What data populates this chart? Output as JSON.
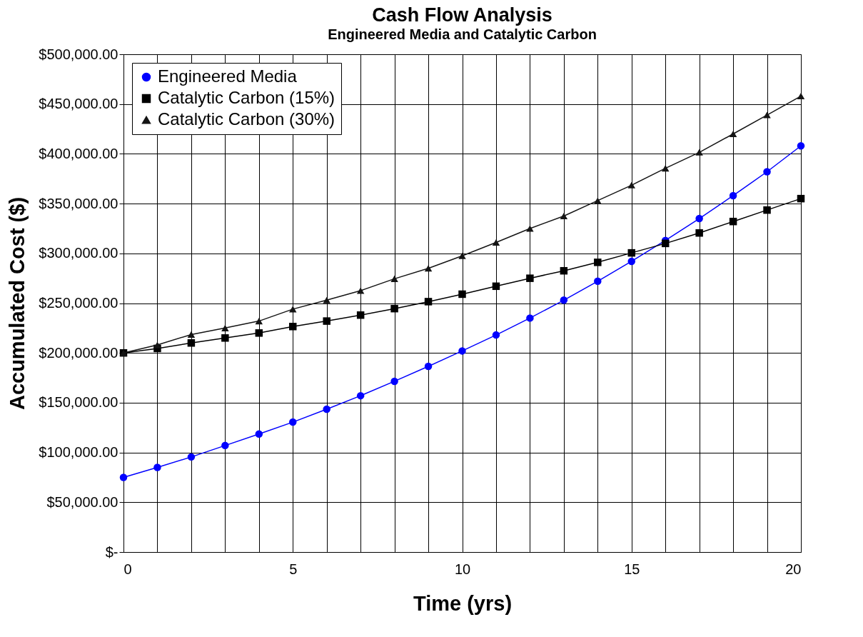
{
  "chart_data": {
    "type": "line",
    "title": "Cash Flow Analysis",
    "subtitle": "Engineered Media and Catalytic Carbon",
    "xlabel": "Time (yrs)",
    "ylabel": "Accumulated Cost ($)",
    "x": [
      0,
      1,
      2,
      3,
      4,
      5,
      6,
      7,
      8,
      9,
      10,
      11,
      12,
      13,
      14,
      15,
      16,
      17,
      18,
      19,
      20
    ],
    "series": [
      {
        "name": "Engineered Media",
        "color": "#0000ff",
        "marker": "circle",
        "values": [
          75000,
          85000,
          95500,
          107000,
          118500,
          130500,
          143500,
          157000,
          171500,
          186500,
          202000,
          218000,
          235000,
          253000,
          272000,
          292000,
          313000,
          335000,
          358000,
          382000,
          408000
        ]
      },
      {
        "name": "Catalytic Carbon (15%)",
        "color": "#000000",
        "marker": "square",
        "values": [
          200000,
          204500,
          210000,
          215000,
          220000,
          226500,
          232000,
          238000,
          244500,
          251500,
          259000,
          267000,
          275000,
          282500,
          291000,
          300500,
          310000,
          320500,
          332000,
          343500,
          355000
        ]
      },
      {
        "name": "Catalytic Carbon (30%)",
        "color": "#141414",
        "marker": "triangle",
        "values": [
          200000,
          208000,
          218500,
          225000,
          232000,
          244000,
          253000,
          262500,
          274500,
          285000,
          297500,
          311000,
          325000,
          337500,
          353000,
          368500,
          385500,
          401500,
          420000,
          439000,
          458000
        ]
      }
    ],
    "xlim": [
      0,
      20
    ],
    "xticks": [
      0,
      {
        "value": 1,
        "label": null
      },
      {
        "value": 2,
        "label": null
      },
      {
        "value": 3,
        "label": null
      },
      {
        "value": 4,
        "label": null
      },
      5,
      {
        "value": 6,
        "label": null
      },
      {
        "value": 7,
        "label": null
      },
      {
        "value": 8,
        "label": null
      },
      {
        "value": 9,
        "label": null
      },
      10,
      {
        "value": 11,
        "label": null
      },
      {
        "value": 12,
        "label": null
      },
      {
        "value": 13,
        "label": null
      },
      {
        "value": 14,
        "label": null
      },
      15,
      {
        "value": 16,
        "label": null
      },
      {
        "value": 17,
        "label": null
      },
      {
        "value": 18,
        "label": null
      },
      {
        "value": 19,
        "label": null
      },
      20
    ],
    "ylim": [
      0,
      500000
    ],
    "yticks": [
      {
        "value": 0,
        "label": "$-"
      },
      {
        "value": 50000,
        "label": "$50,000.00"
      },
      {
        "value": 100000,
        "label": "$100,000.00"
      },
      {
        "value": 150000,
        "label": "$150,000.00"
      },
      {
        "value": 200000,
        "label": "$200,000.00"
      },
      {
        "value": 250000,
        "label": "$250,000.00"
      },
      {
        "value": 300000,
        "label": "$300,000.00"
      },
      {
        "value": 350000,
        "label": "$350,000.00"
      },
      {
        "value": 400000,
        "label": "$400,000.00"
      },
      {
        "value": 450000,
        "label": "$450,000.00"
      },
      {
        "value": 500000,
        "label": "$500,000.00"
      }
    ],
    "grid": true,
    "legend": "top left",
    "line_style": "solid"
  }
}
